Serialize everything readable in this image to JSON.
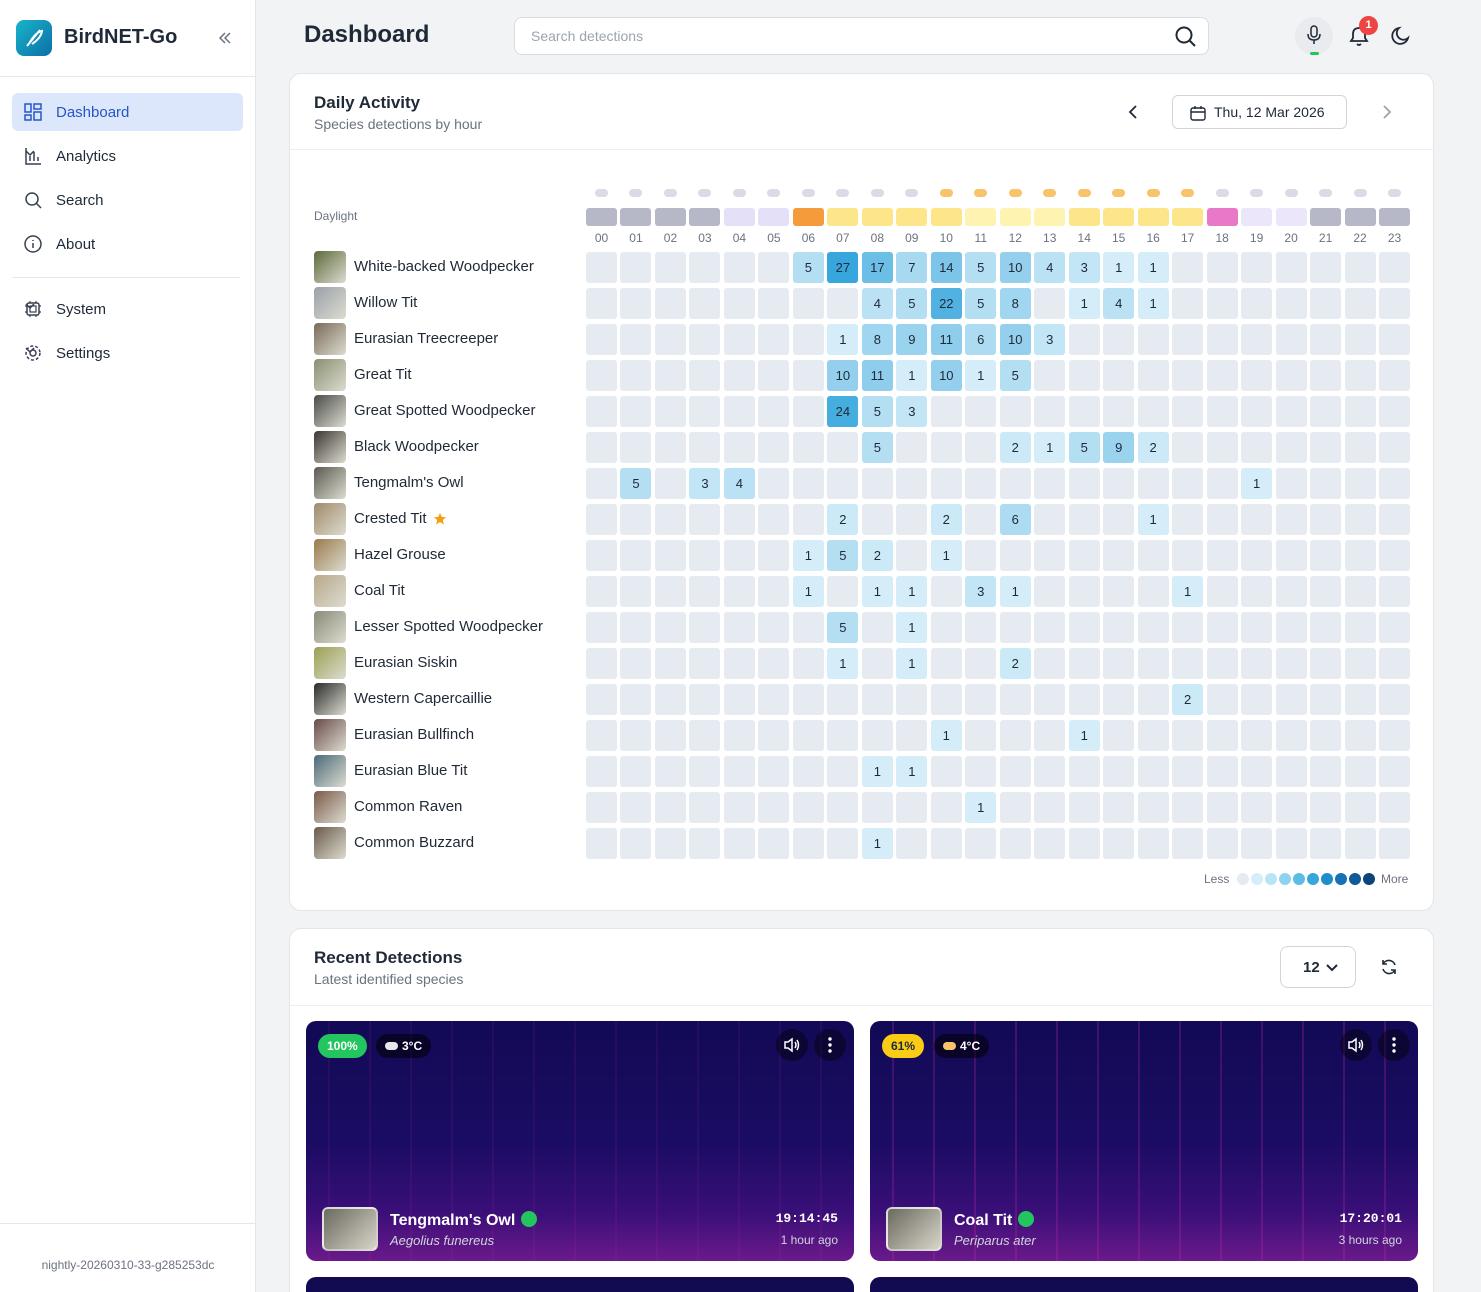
{
  "sidebar": {
    "app_name": "BirdNET-Go",
    "nav": [
      "Dashboard",
      "Analytics",
      "Search",
      "About"
    ],
    "nav2": [
      "System",
      "Settings"
    ],
    "version": "nightly-20260310-33-g285253dc"
  },
  "header": {
    "title": "Dashboard",
    "search_placeholder": "Search detections",
    "notification_count": "1"
  },
  "daily_activity": {
    "title": "Daily Activity",
    "subtitle": "Species detections by hour",
    "date": "Thu, 12 Mar 2026",
    "daylight_label": "Daylight",
    "hours": [
      "00",
      "01",
      "02",
      "03",
      "04",
      "05",
      "06",
      "07",
      "08",
      "09",
      "10",
      "11",
      "12",
      "13",
      "14",
      "15",
      "16",
      "17",
      "18",
      "19",
      "20",
      "21",
      "22",
      "23"
    ],
    "species": [
      {
        "name": "White-backed Woodpecker",
        "counts": [
          null,
          null,
          null,
          null,
          null,
          null,
          5,
          27,
          17,
          7,
          14,
          5,
          10,
          4,
          3,
          1,
          1,
          null,
          null,
          null,
          null,
          null,
          null,
          null
        ]
      },
      {
        "name": "Willow Tit",
        "counts": [
          null,
          null,
          null,
          null,
          null,
          null,
          null,
          null,
          4,
          5,
          22,
          5,
          8,
          null,
          1,
          4,
          1,
          null,
          null,
          null,
          null,
          null,
          null,
          null
        ]
      },
      {
        "name": "Eurasian Treecreeper",
        "counts": [
          null,
          null,
          null,
          null,
          null,
          null,
          null,
          1,
          8,
          9,
          11,
          6,
          10,
          3,
          null,
          null,
          null,
          null,
          null,
          null,
          null,
          null,
          null,
          null
        ]
      },
      {
        "name": "Great Tit",
        "counts": [
          null,
          null,
          null,
          null,
          null,
          null,
          null,
          10,
          11,
          1,
          10,
          1,
          5,
          null,
          null,
          null,
          null,
          null,
          null,
          null,
          null,
          null,
          null,
          null
        ]
      },
      {
        "name": "Great Spotted Woodpecker",
        "counts": [
          null,
          null,
          null,
          null,
          null,
          null,
          null,
          24,
          5,
          3,
          null,
          null,
          null,
          null,
          null,
          null,
          null,
          null,
          null,
          null,
          null,
          null,
          null,
          null
        ]
      },
      {
        "name": "Black Woodpecker",
        "counts": [
          null,
          null,
          null,
          null,
          null,
          null,
          null,
          null,
          5,
          null,
          null,
          null,
          2,
          1,
          5,
          9,
          2,
          null,
          null,
          null,
          null,
          null,
          null,
          null
        ]
      },
      {
        "name": "Tengmalm's Owl",
        "counts": [
          null,
          5,
          null,
          3,
          4,
          null,
          null,
          null,
          null,
          null,
          null,
          null,
          null,
          null,
          null,
          null,
          null,
          null,
          null,
          1,
          null,
          null,
          null,
          null
        ]
      },
      {
        "name": "Crested Tit",
        "counts": [
          null,
          null,
          null,
          null,
          null,
          null,
          null,
          2,
          null,
          null,
          2,
          null,
          6,
          null,
          null,
          null,
          1,
          null,
          null,
          null,
          null,
          null,
          null,
          null
        ]
      },
      {
        "name": "Hazel Grouse",
        "counts": [
          null,
          null,
          null,
          null,
          null,
          null,
          1,
          5,
          2,
          null,
          1,
          null,
          null,
          null,
          null,
          null,
          null,
          null,
          null,
          null,
          null,
          null,
          null,
          null
        ]
      },
      {
        "name": "Coal Tit",
        "counts": [
          null,
          null,
          null,
          null,
          null,
          null,
          1,
          null,
          1,
          1,
          null,
          3,
          1,
          null,
          null,
          null,
          null,
          1,
          null,
          null,
          null,
          null,
          null,
          null
        ]
      },
      {
        "name": "Lesser Spotted Woodpecker",
        "counts": [
          null,
          null,
          null,
          null,
          null,
          null,
          null,
          5,
          null,
          1,
          null,
          null,
          null,
          null,
          null,
          null,
          null,
          null,
          null,
          null,
          null,
          null,
          null,
          null
        ]
      },
      {
        "name": "Eurasian Siskin",
        "counts": [
          null,
          null,
          null,
          null,
          null,
          null,
          null,
          1,
          null,
          1,
          null,
          null,
          2,
          null,
          null,
          null,
          null,
          null,
          null,
          null,
          null,
          null,
          null,
          null
        ]
      },
      {
        "name": "Western Capercaillie",
        "counts": [
          null,
          null,
          null,
          null,
          null,
          null,
          null,
          null,
          null,
          null,
          null,
          null,
          null,
          null,
          null,
          null,
          null,
          2,
          null,
          null,
          null,
          null,
          null,
          null
        ]
      },
      {
        "name": "Eurasian Bullfinch",
        "counts": [
          null,
          null,
          null,
          null,
          null,
          null,
          null,
          null,
          null,
          null,
          1,
          null,
          null,
          null,
          1,
          null,
          null,
          null,
          null,
          null,
          null,
          null,
          null,
          null
        ]
      },
      {
        "name": "Eurasian Blue Tit",
        "counts": [
          null,
          null,
          null,
          null,
          null,
          null,
          null,
          null,
          1,
          1,
          null,
          null,
          null,
          null,
          null,
          null,
          null,
          null,
          null,
          null,
          null,
          null,
          null,
          null
        ]
      },
      {
        "name": "Common Raven",
        "counts": [
          null,
          null,
          null,
          null,
          null,
          null,
          null,
          null,
          null,
          null,
          null,
          1,
          null,
          null,
          null,
          null,
          null,
          null,
          null,
          null,
          null,
          null,
          null,
          null
        ]
      },
      {
        "name": "Common Buzzard",
        "counts": [
          null,
          null,
          null,
          null,
          null,
          null,
          null,
          null,
          1,
          null,
          null,
          null,
          null,
          null,
          null,
          null,
          null,
          null,
          null,
          null,
          null,
          null,
          null,
          null
        ]
      }
    ],
    "legend_less": "Less",
    "legend_more": "More"
  },
  "recent": {
    "title": "Recent Detections",
    "subtitle": "Latest identified species",
    "count": "12",
    "cards": [
      {
        "confidence": "100%",
        "temperature": "3°C",
        "name": "Tengmalm's Owl",
        "scientific": "Aegolius funereus",
        "time": "19:14:45",
        "ago": "1 hour ago"
      },
      {
        "confidence": "61%",
        "temperature": "4°C",
        "name": "Coal Tit",
        "scientific": "Periparus ater",
        "time": "17:20:01",
        "ago": "3 hours ago"
      }
    ]
  }
}
